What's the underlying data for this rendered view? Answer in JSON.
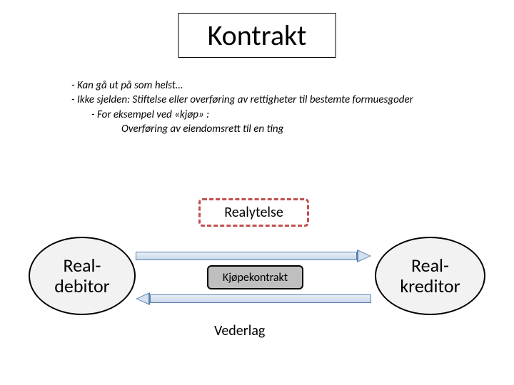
{
  "title": "Kontrakt",
  "bullets": {
    "l1a": "-  Kan gå ut på som helst…",
    "l1b": "-  Ikke sjelden: Stiftelse eller overføring av rettigheter til bestemte formuesgoder",
    "l2": "-  For eksempel ved «kjøp» :",
    "l3": "Overføring av eiendomsrett til en ting"
  },
  "diagram": {
    "left_node": "Real-\ndebitor",
    "right_node": "Real-\nkreditor",
    "top_box": "Realytelse",
    "middle_box": "Kjøpekontrakt",
    "bottom_label": "Vederlag",
    "colors": {
      "ellipse_fill": "#f2f2f2",
      "ellipse_border": "#000000",
      "dashed_border": "#c0504d",
      "middle_fill": "#bfbfbf",
      "arrow_border": "#5980ad",
      "arrow_fill_light": "#e8eef6",
      "arrow_fill_dark": "#c9d8ea",
      "background": "#ffffff"
    },
    "font_sizes": {
      "title": 40,
      "bullets": 15,
      "ellipse": 26,
      "realytelse": 20,
      "kontrakt": 16,
      "vederlag": 20
    }
  }
}
